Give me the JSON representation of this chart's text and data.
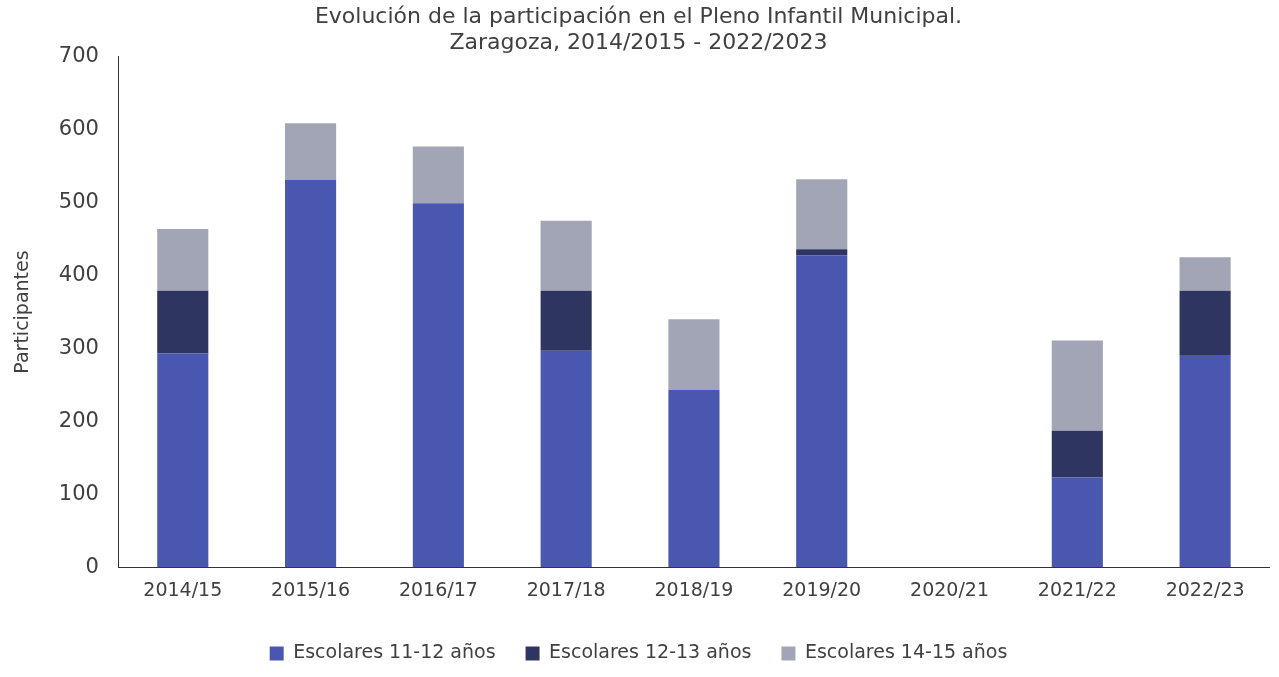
{
  "chart_data": {
    "type": "bar",
    "title": [
      "Evolución de la participación en el Pleno Infantil Municipal.",
      "Zaragoza, 2014/2015 - 2022/2023"
    ],
    "ylabel": "Participantes",
    "categories": [
      "2014/15",
      "2015/16",
      "2016/17",
      "2017/18",
      "2018/19",
      "2019/20",
      "2020/21",
      "2021/22",
      "2022/23"
    ],
    "stacked": true,
    "ylim": [
      0,
      700
    ],
    "yticks": [
      0,
      100,
      200,
      300,
      400,
      500,
      600,
      700
    ],
    "grid": false,
    "legend": "bottom",
    "series": [
      {
        "name": "Escolares 11-12 años",
        "color": "#4a57b0",
        "values": [
          293,
          531,
          499,
          297,
          243,
          428,
          0,
          123,
          291
        ]
      },
      {
        "name": "Escolares 12-13 años",
        "color": "#2e3561",
        "values": [
          86,
          0,
          0,
          82,
          0,
          8,
          0,
          64,
          88
        ]
      },
      {
        "name": "Escolares 14-15 años",
        "color": "#a2a5b5",
        "values": [
          85,
          78,
          78,
          96,
          97,
          96,
          0,
          124,
          46
        ]
      }
    ]
  }
}
